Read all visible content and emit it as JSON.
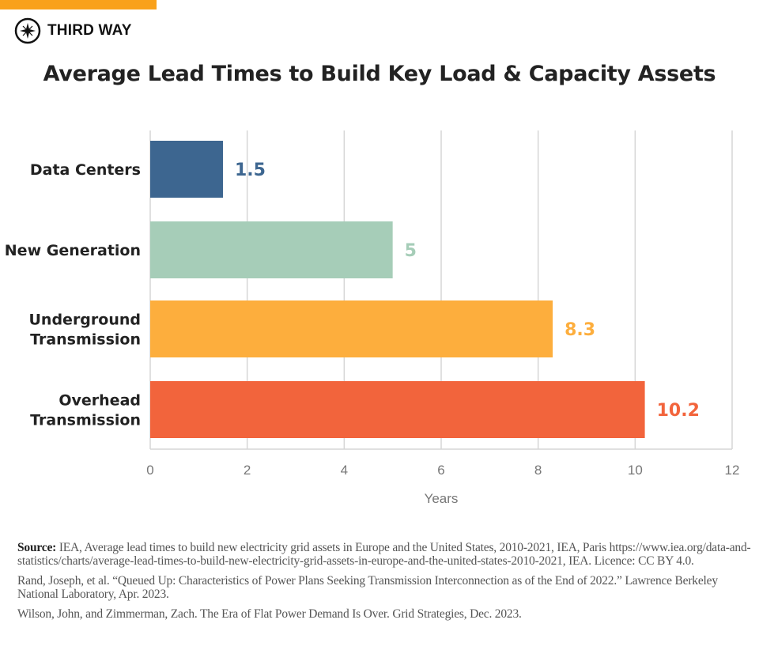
{
  "brand": {
    "name": "THIRD WAY",
    "accent": "#f9a11b"
  },
  "chart_data": {
    "type": "bar",
    "orientation": "horizontal",
    "title": "Average Lead Times to Build Key Load & Capacity Assets",
    "categories": [
      "Data Centers",
      "New Generation",
      "Underground Transmission",
      "Overhead Transmission"
    ],
    "category_lines": [
      [
        "Data Centers"
      ],
      [
        "New Generation"
      ],
      [
        "Underground",
        "Transmission"
      ],
      [
        "Overhead",
        "Transmission"
      ]
    ],
    "values": [
      1.5,
      5,
      8.3,
      10.2
    ],
    "value_labels": [
      "1.5",
      "5",
      "8.3",
      "10.2"
    ],
    "colors": [
      "#3d6690",
      "#a6cdb8",
      "#fdae3d",
      "#f2643c"
    ],
    "xlabel": "Years",
    "xlim": [
      0,
      12
    ],
    "xticks": [
      "0",
      "2",
      "4",
      "6",
      "8",
      "10",
      "12"
    ],
    "grid": true
  },
  "sources": {
    "label": "Source:",
    "line1": "IEA, Average lead times to build new electricity grid assets in Europe and the United States, 2010-2021, IEA, Paris https://www.iea.org/data-and-statistics/charts/average-lead-times-to-build-new-electricity-grid-assets-in-europe-and-the-united-states-2010-2021, IEA. Licence: CC BY 4.0.",
    "line2": "Rand, Joseph, et al. “Queued Up: Characteristics of Power Plans Seeking Transmission Interconnection as of the End of 2022.” Lawrence Berkeley National Laboratory, Apr. 2023.",
    "line3": "Wilson, John, and Zimmerman, Zach. The Era of Flat Power Demand Is Over. Grid Strategies, Dec. 2023."
  }
}
